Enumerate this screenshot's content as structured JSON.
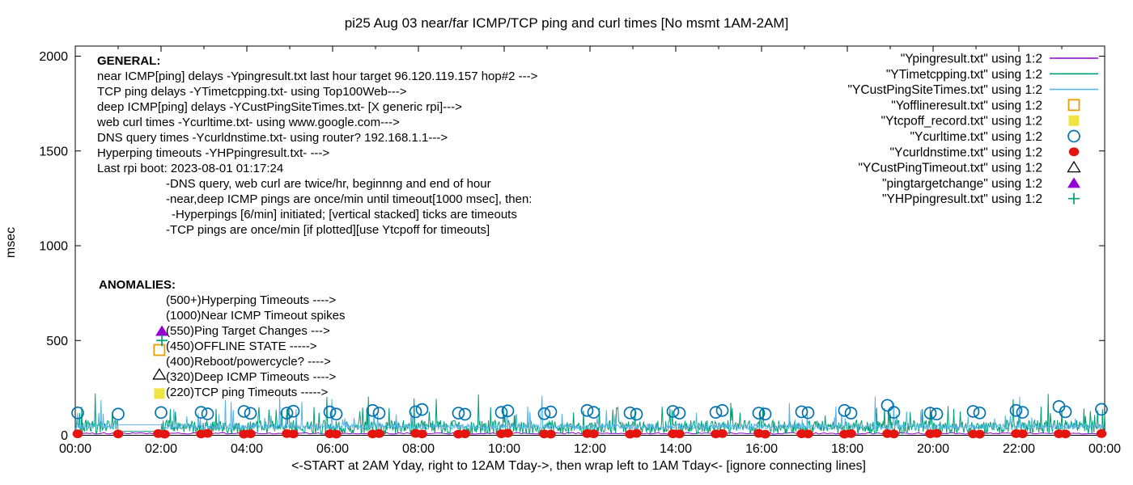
{
  "title": "pi25 Aug 03  near/far ICMP/TCP ping and curl times [No msmt 1AM-2AM]",
  "y_axis": {
    "label": "msec",
    "ticks": [
      0,
      500,
      1000,
      1500,
      2000
    ],
    "range": [
      0,
      2000
    ]
  },
  "x_axis": {
    "label": "<-START at 2AM Yday, right to 12AM Tday->, then wrap left to 1AM Tday<- [ignore connecting lines]",
    "ticks": [
      "00:00",
      "02:00",
      "04:00",
      "06:00",
      "08:00",
      "10:00",
      "12:00",
      "14:00",
      "16:00",
      "18:00",
      "20:00",
      "22:00",
      "00:00"
    ],
    "tick_hours": [
      0,
      2,
      4,
      6,
      8,
      10,
      12,
      14,
      16,
      18,
      20,
      22,
      24
    ]
  },
  "general": {
    "heading": "GENERAL:",
    "lines": [
      {
        "text": "near ICMP[ping] delays -Ypingresult.txt last hour target 96.120.119.157 hop#2 --->",
        "indent": 0
      },
      {
        "text": "TCP ping delays -YTimetcpping.txt- using Top100Web--->",
        "indent": 0
      },
      {
        "text": "deep ICMP[ping] delays -YCustPingSiteTimes.txt- [X generic rpi]--->",
        "indent": 0
      },
      {
        "text": "web curl times -Ycurltime.txt- using www.google.com--->",
        "indent": 0
      },
      {
        "text": "DNS query times -Ycurldnstime.txt- using router? 192.168.1.1--->",
        "indent": 0
      },
      {
        "text": "Hyperping timeouts -YHPpingresult.txt- --->",
        "indent": 0
      },
      {
        "text": "Last rpi boot: 2023-08-01 01:17:24",
        "indent": 0
      },
      {
        "text": "-DNS query, web curl are twice/hr, beginnng and end of hour",
        "indent": 85
      },
      {
        "text": "-near,deep ICMP pings are once/min until timeout[1000 msec], then:",
        "indent": 85
      },
      {
        "text": "-Hyperpings [6/min] initiated; [vertical stacked] ticks are timeouts",
        "indent": 92
      },
      {
        "text": "-TCP pings are once/min [if plotted][use Ytcpoff for timeouts]",
        "indent": 85
      }
    ]
  },
  "anomalies": {
    "heading": "ANOMALIES:",
    "items": [
      {
        "text": "(500+)Hyperping Timeouts ---->",
        "indent": 83
      },
      {
        "text": "(1000)Near ICMP Timeout spikes",
        "indent": 83
      },
      {
        "text": "(550)Ping Target Changes --->",
        "indent": 83
      },
      {
        "text": "(450)OFFLINE STATE ----->",
        "indent": 83
      },
      {
        "text": "(400)Reboot/powercycle? ---->",
        "indent": 83
      },
      {
        "text": "(320)Deep ICMP Timeouts ---->",
        "indent": 83
      },
      {
        "text": "(220)TCP ping Timeouts ----->",
        "indent": 83
      }
    ]
  },
  "legend": [
    {
      "label": "\"Ypingresult.txt\" using 1:2",
      "marker": "line",
      "color": "#9400d3"
    },
    {
      "label": "\"YTimetcpping.txt\" using 1:2",
      "marker": "line",
      "color": "#009e73"
    },
    {
      "label": "\"YCustPingSiteTimes.txt\" using 1:2",
      "marker": "line",
      "color": "#56b4e9"
    },
    {
      "label": "\"Yofflineresult.txt\" using 1:2",
      "marker": "square-open",
      "color": "#e69f00"
    },
    {
      "label": "\"Ytcpoff_record.txt\" using 1:2",
      "marker": "square-filled",
      "color": "#f0e442"
    },
    {
      "label": "\"Ycurltime.txt\" using 1:2",
      "marker": "circle-open",
      "color": "#0072b2"
    },
    {
      "label": "\"Ycurldnstime.txt\" using 1:2",
      "marker": "circle-filled",
      "color": "#e4140e"
    },
    {
      "label": "\"YCustPingTimeout.txt\" using 1:2",
      "marker": "triangle-open",
      "color": "#000000"
    },
    {
      "label": "\"pingtargetchange\" using 1:2",
      "marker": "triangle-filled",
      "color": "#9400d3"
    },
    {
      "label": "\"YHPpingresult.txt\" using 1:2",
      "marker": "plus",
      "color": "#009e73"
    }
  ],
  "chart_data": {
    "type": "line",
    "title": "pi25 Aug 03  near/far ICMP/TCP ping and curl times [No msmt 1AM-2AM]",
    "xlabel": "<-START at 2AM Yday, right to 12AM Tday->, then wrap left to 1AM Tday<- [ignore connecting lines]",
    "ylabel": "msec",
    "ylim": [
      0,
      2000
    ],
    "xlim_hours": [
      0,
      24
    ],
    "x_tick_labels": [
      "00:00",
      "02:00",
      "04:00",
      "06:00",
      "08:00",
      "10:00",
      "12:00",
      "14:00",
      "16:00",
      "18:00",
      "20:00",
      "22:00",
      "00:00"
    ],
    "grid": false,
    "legend_position": "top-right-inside",
    "no_measurement_window_hours": [
      1,
      2
    ],
    "series": [
      {
        "file": "Ypingresult.txt",
        "label": "near ICMP ping delay",
        "style": "line",
        "color": "#9400d3",
        "sample_step_min": 4,
        "range_msec": [
          6,
          14
        ]
      },
      {
        "file": "YTimetcpping.txt",
        "label": "TCP ping delay (once/min)",
        "style": "line",
        "color": "#009e73",
        "sample_step_min": 1,
        "range_msec": [
          6,
          80
        ],
        "spike_max_msec": 225,
        "no_msmt_value_msec": 20
      },
      {
        "file": "YCustPingSiteTimes.txt",
        "label": "deep ICMP ping delay (once/min)",
        "style": "line",
        "color": "#56b4e9",
        "sample_step_min": 1,
        "range_msec": [
          32,
          60
        ],
        "spike_max_msec": 210,
        "no_msmt_value_msec": 55
      },
      {
        "file": "Ycurltime.txt",
        "label": "web curl time (twice/hr)",
        "style": "points",
        "marker": "circle-open",
        "color": "#0072b2",
        "times_by_hour_msec": [
          [
            118
          ],
          [
            112
          ],
          [
            120
          ],
          [
            121,
            113
          ],
          [
            126,
            116
          ],
          [
            117,
            127
          ],
          [
            123,
            112
          ],
          [
            131,
            117
          ],
          [
            124,
            136
          ],
          [
            117,
            111
          ],
          [
            121,
            129
          ],
          [
            114,
            123
          ],
          [
            131,
            121
          ],
          [
            118,
            111
          ],
          [
            126,
            117
          ],
          [
            121,
            131
          ],
          [
            117,
            112
          ],
          [
            124,
            119
          ],
          [
            131,
            117
          ],
          [
            158,
            121
          ],
          [
            117,
            112
          ],
          [
            126,
            118
          ],
          [
            131,
            121
          ],
          [
            152,
            124
          ],
          [
            137
          ]
        ]
      },
      {
        "file": "Ycurldnstime.txt",
        "label": "DNS query time (twice/hr)",
        "style": "points",
        "marker": "circle-filled",
        "color": "#e4140e",
        "times_by_hour_msec": [
          [
            8
          ],
          [
            7
          ],
          [
            9,
            6
          ],
          [
            7,
            10
          ],
          [
            6,
            8
          ],
          [
            9,
            7
          ],
          [
            8,
            6
          ],
          [
            7,
            9
          ],
          [
            10,
            7
          ],
          [
            6,
            8
          ],
          [
            8,
            11
          ],
          [
            7,
            6
          ],
          [
            9,
            8
          ],
          [
            6,
            10
          ],
          [
            8,
            7
          ],
          [
            7,
            9
          ],
          [
            10,
            6
          ],
          [
            8,
            7
          ],
          [
            6,
            9
          ],
          [
            9,
            7
          ],
          [
            8,
            10
          ],
          [
            7,
            6
          ],
          [
            9,
            8
          ],
          [
            8,
            7
          ],
          [
            9
          ]
        ]
      },
      {
        "file": "Yofflineresult.txt",
        "label": "OFFLINE STATE marker",
        "style": "points",
        "marker": "square-open",
        "color": "#e69f00",
        "points": [
          {
            "hour": 1.96,
            "msec": 450
          }
        ]
      },
      {
        "file": "Ytcpoff_record.txt",
        "label": "TCP ping timeout marker",
        "style": "points",
        "marker": "square-filled",
        "color": "#f0e442",
        "points": [
          {
            "hour": 1.96,
            "msec": 220
          }
        ]
      },
      {
        "file": "YCustPingTimeout.txt",
        "label": "deep ICMP timeout marker",
        "style": "points",
        "marker": "triangle-open",
        "color": "#000000",
        "points": [
          {
            "hour": 1.96,
            "msec": 320
          }
        ]
      },
      {
        "file": "pingtargetchange",
        "label": "ping target change marker",
        "style": "points",
        "marker": "triangle-filled",
        "color": "#9400d3",
        "points": [
          {
            "hour": 2.02,
            "msec": 550
          }
        ]
      },
      {
        "file": "YHPpingresult.txt",
        "label": "hyperping timeout marker",
        "style": "points",
        "marker": "plus",
        "color": "#009e73",
        "points": [
          {
            "hour": 2.02,
            "msec": 500
          }
        ]
      }
    ]
  }
}
